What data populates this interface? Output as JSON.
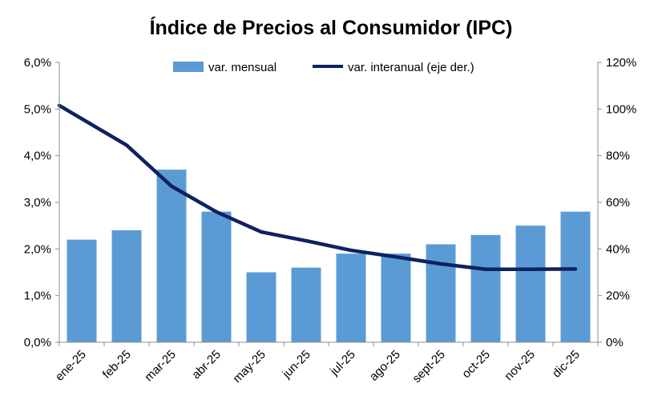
{
  "chart_data": {
    "type": "bar",
    "title": "Índice de Precios al Consumidor (IPC)",
    "categories": [
      "ene-25",
      "feb-25",
      "mar-25",
      "abr-25",
      "may-25",
      "jun-25",
      "jul-25",
      "ago-25",
      "sept-25",
      "oct-25",
      "nov-25",
      "dic-25"
    ],
    "series": [
      {
        "name": "var. mensual",
        "type": "bar",
        "axis": "left",
        "color": "#5b9bd5",
        "values": [
          2.2,
          2.4,
          3.7,
          2.8,
          1.5,
          1.6,
          1.9,
          1.9,
          2.1,
          2.3,
          2.5,
          2.8
        ]
      },
      {
        "name": "var. interanual (eje der.)",
        "type": "line",
        "axis": "right",
        "color": "#0d2260",
        "values": [
          101.5,
          84.5,
          66.9,
          55.9,
          47.3,
          43.5,
          39.4,
          36.6,
          33.6,
          31.3,
          31.3,
          31.4
        ]
      }
    ],
    "ylim_left": [
      0,
      6
    ],
    "ylim_right": [
      0,
      120
    ],
    "yticks_left": [
      "0,0%",
      "1,0%",
      "2,0%",
      "3,0%",
      "4,0%",
      "5,0%",
      "6,0%"
    ],
    "yticks_right": [
      "0%",
      "20%",
      "40%",
      "60%",
      "80%",
      "100%",
      "120%"
    ],
    "grid": false,
    "legend": "top-center"
  }
}
